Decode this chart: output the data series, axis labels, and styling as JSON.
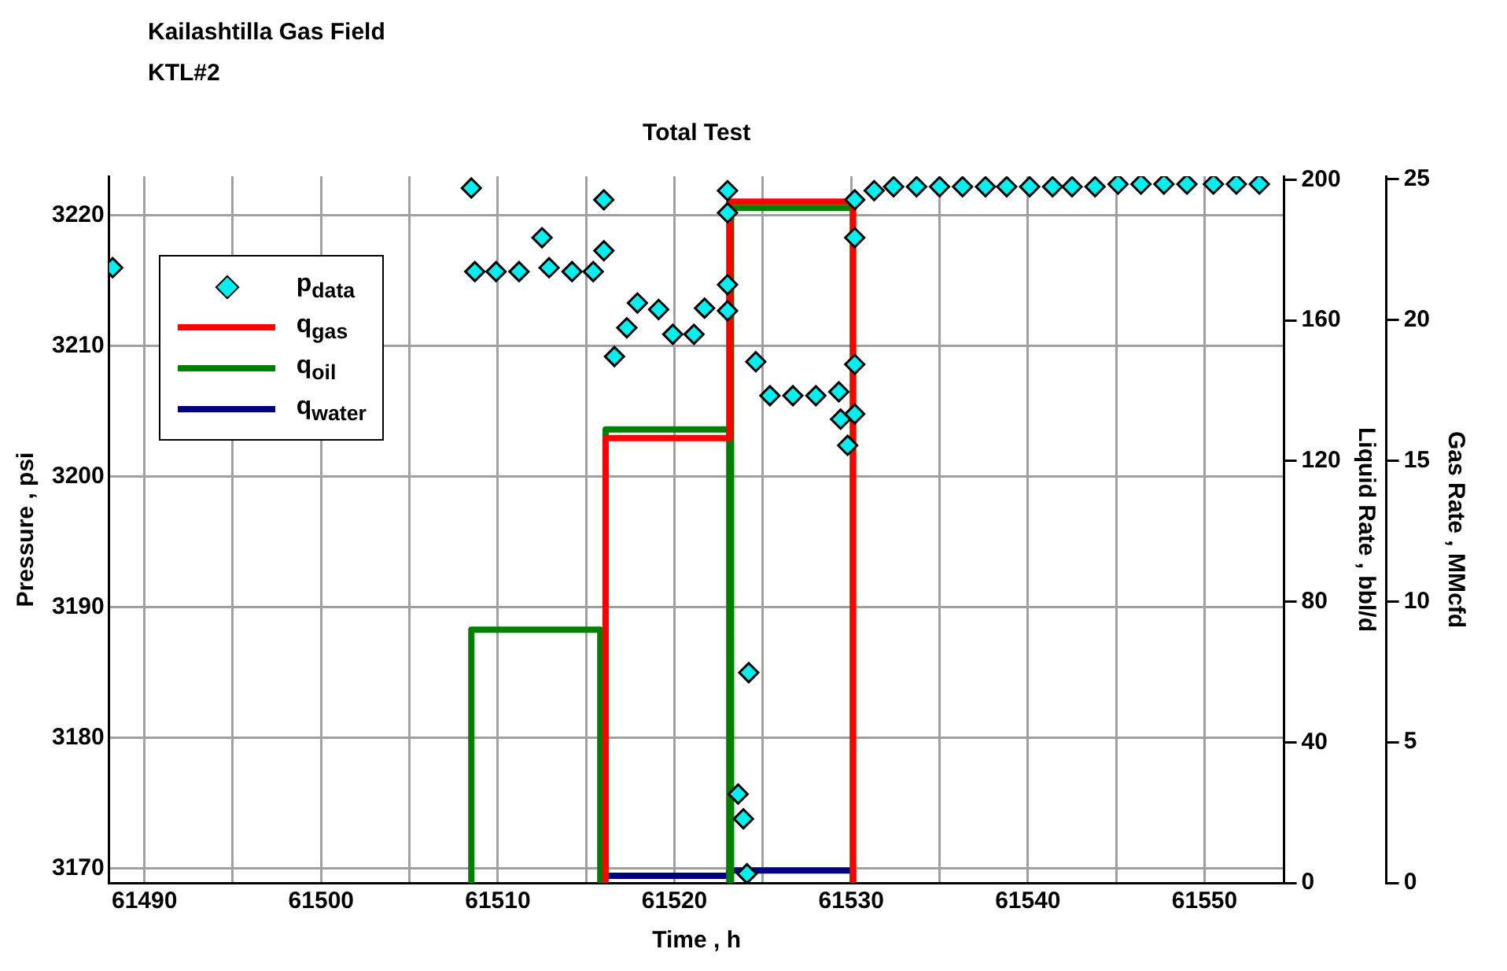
{
  "chart_data": {
    "type": "scatter",
    "title": "Total Test",
    "subtitle": "Kailashtilla Gas Field\nKTL#2",
    "xlabel": "Time , h",
    "ylabel": "Pressure , psi",
    "y2label": "Liquid Rate , bbl/d",
    "y3label": "Gas Rate , MMcfd",
    "xlim": [
      61488,
      61554.5
    ],
    "xticks": [
      61490,
      {
        "value": 61495,
        "label": null
      },
      61500,
      {
        "value": 61505,
        "label": null
      },
      61510,
      {
        "value": 61515,
        "label": null
      },
      61520,
      {
        "value": 61525,
        "label": null
      },
      61530,
      {
        "value": 61535,
        "label": null
      },
      61540,
      {
        "value": 61545,
        "label": null
      },
      61550
    ],
    "ylim": [
      3168.9,
      3223
    ],
    "yticks": [
      3170,
      3180,
      3190,
      3200,
      3210,
      3220
    ],
    "y2lim": [
      0,
      201
    ],
    "y2ticks": [
      0,
      40,
      80,
      120,
      160,
      200
    ],
    "y3lim": [
      0,
      25.1
    ],
    "y3ticks": [
      0,
      5,
      10,
      15,
      20,
      25
    ],
    "grid": true,
    "legend": "top left",
    "series": [
      {
        "name": "p$_{data}$",
        "marker": "diamond",
        "color": "#00f0f0",
        "x": [
          61488.2,
          61508.5,
          61508.7,
          61509.9,
          61511.2,
          61512.5,
          61512.9,
          61514.2,
          61515.4,
          61516.0,
          61516.0,
          61516.6,
          61517.3,
          61517.9,
          61519.1,
          61519.9,
          61521.1,
          61521.7,
          61523.0,
          61523.0,
          61523.0,
          61523.0,
          61523.6,
          61523.9,
          61524.1,
          61524.2,
          61524.6,
          61525.4,
          61526.7,
          61528.0,
          61529.3,
          61529.4,
          61529.8,
          61530.2,
          61530.2,
          61530.2,
          61530.2,
          61531.3,
          61532.4,
          61533.7,
          61535.0,
          61536.3,
          61537.6,
          61538.8,
          61540.1,
          61541.4,
          61542.5,
          61543.8,
          61545.1,
          61546.4,
          61547.7,
          61549.0,
          61550.5,
          61551.8,
          61553.1
        ],
        "values": [
          3216.0,
          3222.1,
          3215.7,
          3215.7,
          3215.7,
          3218.3,
          3216.0,
          3215.7,
          3215.7,
          3221.2,
          3217.3,
          3209.2,
          3211.4,
          3213.3,
          3212.8,
          3210.9,
          3210.9,
          3212.9,
          3221.9,
          3220.2,
          3214.7,
          3212.7,
          3175.7,
          3173.8,
          3169.6,
          3185.0,
          3208.8,
          3206.2,
          3206.2,
          3206.2,
          3206.5,
          3204.4,
          3202.4,
          3204.8,
          3208.6,
          3218.3,
          3221.2,
          3221.9,
          3222.2,
          3222.2,
          3222.2,
          3222.2,
          3222.2,
          3222.2,
          3222.2,
          3222.2,
          3222.2,
          3222.2,
          3222.4,
          3222.4,
          3222.4,
          3222.4,
          3222.4,
          3222.4,
          3222.4
        ]
      },
      {
        "name": "q$_{gas}$",
        "type": "step",
        "marker": "none",
        "axis": "y3",
        "color": "#ff0000",
        "x": [
          61516.0,
          61516.1,
          61523.1,
          61530.1
        ],
        "values": [
          0,
          15.8,
          24.2,
          0
        ]
      },
      {
        "name": "q$_{oil}$",
        "type": "step",
        "marker": "none",
        "axis": "y2",
        "color": "#008000",
        "x": [
          61508.4,
          61508.5,
          61515.8,
          61516.1,
          61523.1,
          61523.2,
          61530.1
        ],
        "values": [
          0,
          72,
          0,
          129,
          0,
          192,
          0
        ]
      },
      {
        "name": "q$_{water}$",
        "type": "step",
        "marker": "none",
        "axis": "y2",
        "color": "#000080",
        "x": [
          61516.0,
          61516.1,
          61523.1,
          61530.1
        ],
        "values": [
          0,
          2,
          3.5,
          0
        ]
      }
    ]
  }
}
